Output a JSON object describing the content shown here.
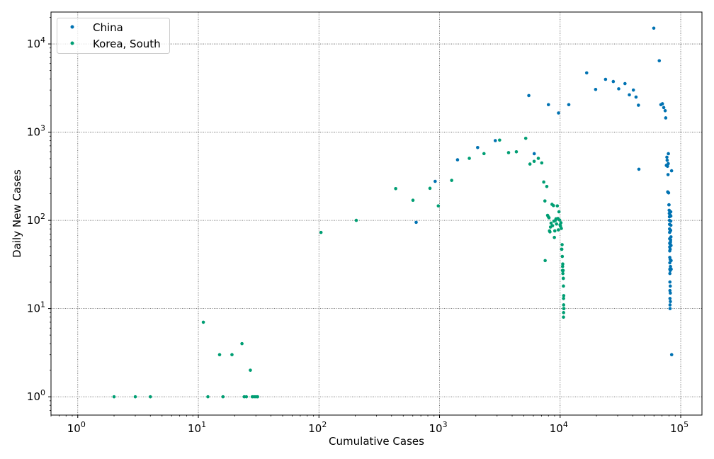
{
  "chart_data": {
    "type": "scatter",
    "title": "",
    "xlabel": "Cumulative Cases",
    "ylabel": "Daily New Cases",
    "xscale": "log",
    "yscale": "log",
    "xlim": [
      0.6,
      150000
    ],
    "ylim": [
      0.62,
      23000
    ],
    "grid": true,
    "legend_position": "upper-left",
    "x_ticks": [
      {
        "value": 1,
        "base": "10",
        "exp": "0"
      },
      {
        "value": 10,
        "base": "10",
        "exp": "1"
      },
      {
        "value": 100,
        "base": "10",
        "exp": "2"
      },
      {
        "value": 1000,
        "base": "10",
        "exp": "3"
      },
      {
        "value": 10000,
        "base": "10",
        "exp": "4"
      },
      {
        "value": 100000,
        "base": "10",
        "exp": "5"
      }
    ],
    "y_ticks": [
      {
        "value": 1,
        "base": "10",
        "exp": "0"
      },
      {
        "value": 10,
        "base": "10",
        "exp": "1"
      },
      {
        "value": 100,
        "base": "10",
        "exp": "2"
      },
      {
        "value": 1000,
        "base": "10",
        "exp": "3"
      },
      {
        "value": 10000,
        "base": "10",
        "exp": "4"
      }
    ],
    "series": [
      {
        "name": "China",
        "color": "#0072b2",
        "points": [
          [
            640,
            95
          ],
          [
            920,
            277
          ],
          [
            1410,
            486
          ],
          [
            2070,
            669
          ],
          [
            2900,
            802
          ],
          [
            5500,
            2600
          ],
          [
            6100,
            570
          ],
          [
            8000,
            2050
          ],
          [
            9700,
            1650
          ],
          [
            11800,
            2050
          ],
          [
            16600,
            4700
          ],
          [
            19700,
            3050
          ],
          [
            23800,
            3970
          ],
          [
            27600,
            3750
          ],
          [
            30600,
            3100
          ],
          [
            34500,
            3550
          ],
          [
            37500,
            2650
          ],
          [
            40500,
            3000
          ],
          [
            42600,
            2500
          ],
          [
            44600,
            2020
          ],
          [
            45000,
            380
          ],
          [
            59800,
            15100
          ],
          [
            66400,
            6450
          ],
          [
            68500,
            2050
          ],
          [
            70500,
            2100
          ],
          [
            72300,
            1900
          ],
          [
            74300,
            1750
          ],
          [
            75100,
            1450
          ],
          [
            76000,
            420
          ],
          [
            76800,
            520
          ],
          [
            77200,
            480
          ],
          [
            77700,
            410
          ],
          [
            78000,
            210
          ],
          [
            78500,
            330
          ],
          [
            78800,
            440
          ],
          [
            79000,
            570
          ],
          [
            79300,
            205
          ],
          [
            79800,
            150
          ],
          [
            80000,
            150
          ],
          [
            80200,
            130
          ],
          [
            80400,
            120
          ],
          [
            80600,
            110
          ],
          [
            80700,
            100
          ],
          [
            80800,
            90
          ],
          [
            80850,
            80
          ],
          [
            80900,
            73
          ],
          [
            80950,
            62
          ],
          [
            81000,
            55
          ],
          [
            81050,
            50
          ],
          [
            81100,
            45
          ],
          [
            81150,
            38
          ],
          [
            81200,
            33
          ],
          [
            81250,
            28
          ],
          [
            81300,
            25
          ],
          [
            81350,
            20
          ],
          [
            81400,
            16
          ],
          [
            81450,
            13
          ],
          [
            81500,
            11
          ],
          [
            81550,
            10
          ],
          [
            81600,
            75
          ],
          [
            81650,
            115
          ],
          [
            81700,
            54
          ],
          [
            81750,
            47
          ],
          [
            81800,
            36
          ],
          [
            81850,
            27
          ],
          [
            81900,
            18
          ],
          [
            82000,
            15
          ],
          [
            82100,
            12
          ],
          [
            82200,
            30
          ],
          [
            82300,
            57
          ],
          [
            82400,
            60
          ],
          [
            82500,
            77
          ],
          [
            82600,
            98
          ],
          [
            82700,
            125
          ],
          [
            82800,
            112
          ],
          [
            82900,
            88
          ],
          [
            83000,
            65
          ],
          [
            83100,
            52
          ],
          [
            83200,
            35
          ],
          [
            83300,
            28
          ],
          [
            84000,
            365
          ],
          [
            84100,
            3
          ]
        ]
      },
      {
        "name": "Korea, South",
        "color": "#009e73",
        "points": [
          [
            2,
            1
          ],
          [
            3,
            1
          ],
          [
            4,
            1
          ],
          [
            11,
            7
          ],
          [
            12,
            1
          ],
          [
            15,
            3
          ],
          [
            16,
            1
          ],
          [
            19,
            3
          ],
          [
            23,
            4
          ],
          [
            24,
            1
          ],
          [
            25,
            1
          ],
          [
            27,
            2
          ],
          [
            28,
            1
          ],
          [
            29,
            1
          ],
          [
            30,
            1
          ],
          [
            31,
            1
          ],
          [
            104,
            73
          ],
          [
            204,
            100
          ],
          [
            433,
            229
          ],
          [
            602,
            169
          ],
          [
            833,
            231
          ],
          [
            977,
            146
          ],
          [
            1261,
            284
          ],
          [
            1766,
            505
          ],
          [
            2337,
            571
          ],
          [
            3150,
            813
          ],
          [
            3736,
            586
          ],
          [
            4335,
            599
          ],
          [
            5186,
            851
          ],
          [
            5621,
            435
          ],
          [
            6088,
            467
          ],
          [
            6593,
            505
          ],
          [
            7041,
            448
          ],
          [
            7313,
            272
          ],
          [
            7478,
            166
          ],
          [
            7513,
            35
          ],
          [
            7755,
            242
          ],
          [
            7869,
            114
          ],
          [
            7979,
            110
          ],
          [
            8086,
            107
          ],
          [
            8162,
            76
          ],
          [
            8236,
            74
          ],
          [
            8320,
            84
          ],
          [
            8413,
            93
          ],
          [
            8565,
            152
          ],
          [
            8652,
            87
          ],
          [
            8799,
            147
          ],
          [
            8897,
            98
          ],
          [
            8961,
            64
          ],
          [
            9037,
            76
          ],
          [
            9137,
            100
          ],
          [
            9241,
            104
          ],
          [
            9332,
            91
          ],
          [
            9478,
            146
          ],
          [
            9583,
            105
          ],
          [
            9661,
            78
          ],
          [
            9786,
            125
          ],
          [
            9887,
            101
          ],
          [
            9976,
            89
          ],
          [
            10062,
            86
          ],
          [
            10156,
            94
          ],
          [
            10237,
            81
          ],
          [
            10284,
            47
          ],
          [
            10331,
            47
          ],
          [
            10384,
            53
          ],
          [
            10423,
            39
          ],
          [
            10450,
            27
          ],
          [
            10480,
            30
          ],
          [
            10512,
            32
          ],
          [
            10537,
            25
          ],
          [
            10564,
            27
          ],
          [
            10591,
            27
          ],
          [
            10613,
            22
          ],
          [
            10635,
            22
          ],
          [
            10653,
            18
          ],
          [
            10661,
            8
          ],
          [
            10674,
            13
          ],
          [
            10683,
            9
          ],
          [
            10694,
            11
          ],
          [
            10708,
            14
          ],
          [
            10718,
            10
          ],
          [
            10728,
            10
          ],
          [
            10738,
            10
          ]
        ]
      }
    ]
  }
}
